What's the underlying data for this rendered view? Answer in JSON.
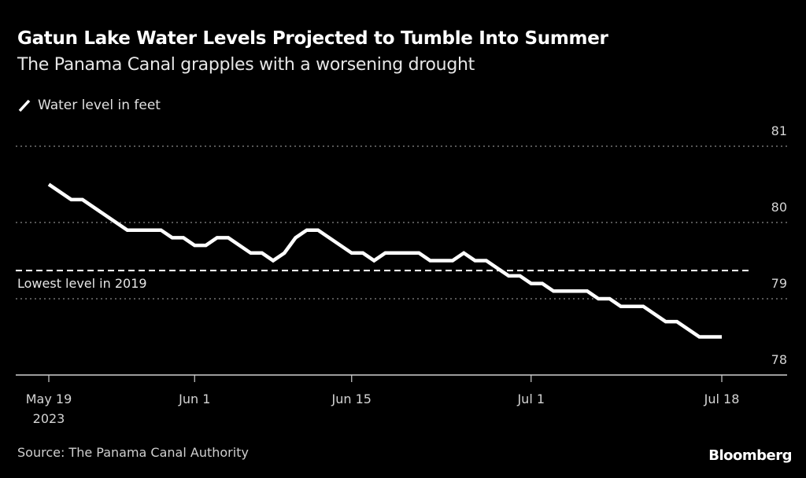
{
  "header": {
    "title": "Gatun Lake Water Levels Projected to Tumble Into Summer",
    "subtitle": "The Panama Canal grapples with a worsening drought"
  },
  "legend": {
    "icon": "line-swatch-icon",
    "label": "Water level in feet"
  },
  "footer": {
    "source": "Source: The Panama Canal Authority",
    "brand": "Bloomberg"
  },
  "colors": {
    "background": "#000000",
    "line": "#ffffff",
    "grid": "#8a8a8a",
    "reference": "#ffffff"
  },
  "chart_data": {
    "type": "line",
    "title": "Gatun Lake Water Levels Projected to Tumble Into Summer",
    "subtitle": "The Panama Canal grapples with a worsening drought",
    "xlabel": "",
    "ylabel": "Water level in feet",
    "ylim": [
      78,
      81
    ],
    "yticks": [
      78,
      79,
      80,
      81
    ],
    "ytick_labels": [
      "78",
      "79",
      "80",
      "81"
    ],
    "y_axis_position": "right",
    "grid": true,
    "x_unit": "days since May 19, 2023",
    "xlim": [
      0,
      62
    ],
    "xticks": [
      0,
      13,
      27,
      43,
      60
    ],
    "xtick_labels": [
      [
        "May 19",
        "2023"
      ],
      [
        "Jun 1"
      ],
      [
        "Jun 15"
      ],
      [
        "Jul 1"
      ],
      [
        "Jul 18"
      ]
    ],
    "legend_position": "top-left",
    "series": [
      {
        "name": "Water level in feet",
        "x": [
          0,
          2,
          3,
          7,
          10,
          11,
          12,
          13,
          14,
          15,
          16,
          18,
          19,
          20,
          21,
          22,
          23,
          24,
          27,
          28,
          29,
          30,
          33,
          34,
          36,
          37,
          38,
          39,
          41,
          42,
          43,
          44,
          45,
          48,
          49,
          50,
          51,
          53,
          55,
          56,
          58,
          60
        ],
        "values": [
          80.5,
          80.3,
          80.3,
          79.9,
          79.9,
          79.8,
          79.8,
          79.7,
          79.7,
          79.8,
          79.8,
          79.6,
          79.6,
          79.5,
          79.6,
          79.8,
          79.9,
          79.9,
          79.6,
          79.6,
          79.5,
          79.6,
          79.6,
          79.5,
          79.5,
          79.6,
          79.5,
          79.5,
          79.3,
          79.3,
          79.2,
          79.2,
          79.1,
          79.1,
          79.0,
          79.0,
          78.9,
          78.9,
          78.7,
          78.7,
          78.5,
          78.5
        ]
      }
    ],
    "annotations": [
      {
        "type": "reference-line",
        "value": 79.37,
        "label": "Lowest level in 2019",
        "style": "dashed"
      }
    ]
  }
}
